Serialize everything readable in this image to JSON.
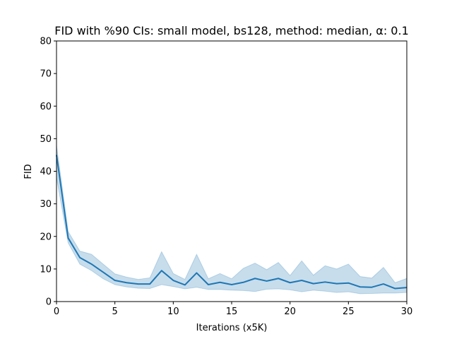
{
  "chart_data": {
    "type": "line",
    "title": "FID with %90 CIs: small model, bs128, method: median, α: 0.1",
    "xlabel": "Iterations (x5K)",
    "ylabel": "FID",
    "xlim": [
      0,
      30
    ],
    "ylim": [
      0,
      80
    ],
    "xticks": [
      0,
      5,
      10,
      15,
      20,
      25,
      30
    ],
    "yticks": [
      0,
      10,
      20,
      30,
      40,
      50,
      60,
      70,
      80
    ],
    "grid": false,
    "colors": {
      "line": "#1f77b4",
      "band": "#1f77b4"
    },
    "x": [
      0,
      1,
      2,
      3,
      4,
      5,
      6,
      7,
      8,
      9,
      10,
      11,
      12,
      13,
      14,
      15,
      16,
      17,
      18,
      19,
      20,
      21,
      22,
      23,
      24,
      25,
      26,
      27,
      28,
      29,
      30
    ],
    "series": [
      {
        "values": [
          45,
          19.5,
          13.5,
          11.5,
          9,
          6.5,
          5.8,
          5.4,
          5.4,
          9.5,
          6.5,
          5.1,
          8.8,
          5.2,
          5.9,
          5.2,
          5.9,
          7.1,
          6.3,
          7.1,
          5.8,
          6.5,
          5.5,
          6,
          5.5,
          5.7,
          4.5,
          4.4,
          5.4,
          4.0,
          4.3
        ],
        "ci_lower": [
          38,
          18,
          11.5,
          9.5,
          7,
          5.2,
          4.5,
          4.1,
          4.0,
          5.2,
          4.6,
          3.9,
          4.4,
          3.7,
          3.7,
          3.5,
          3.4,
          3.1,
          3.8,
          3.9,
          3.6,
          3.0,
          3.5,
          3.2,
          2.8,
          3.0,
          2.4,
          2.5,
          2.6,
          2.6,
          2.8
        ],
        "ci_upper": [
          48,
          21.5,
          15.5,
          14.5,
          11.5,
          8.5,
          7.5,
          6.8,
          7.3,
          15.3,
          8.6,
          6.8,
          14.5,
          7.0,
          8.6,
          7.0,
          10.2,
          11.8,
          9.8,
          12.0,
          8.0,
          12.5,
          8.1,
          11.0,
          10.0,
          11.5,
          7.7,
          7.2,
          10.5,
          5.8,
          7.1
        ]
      }
    ]
  }
}
